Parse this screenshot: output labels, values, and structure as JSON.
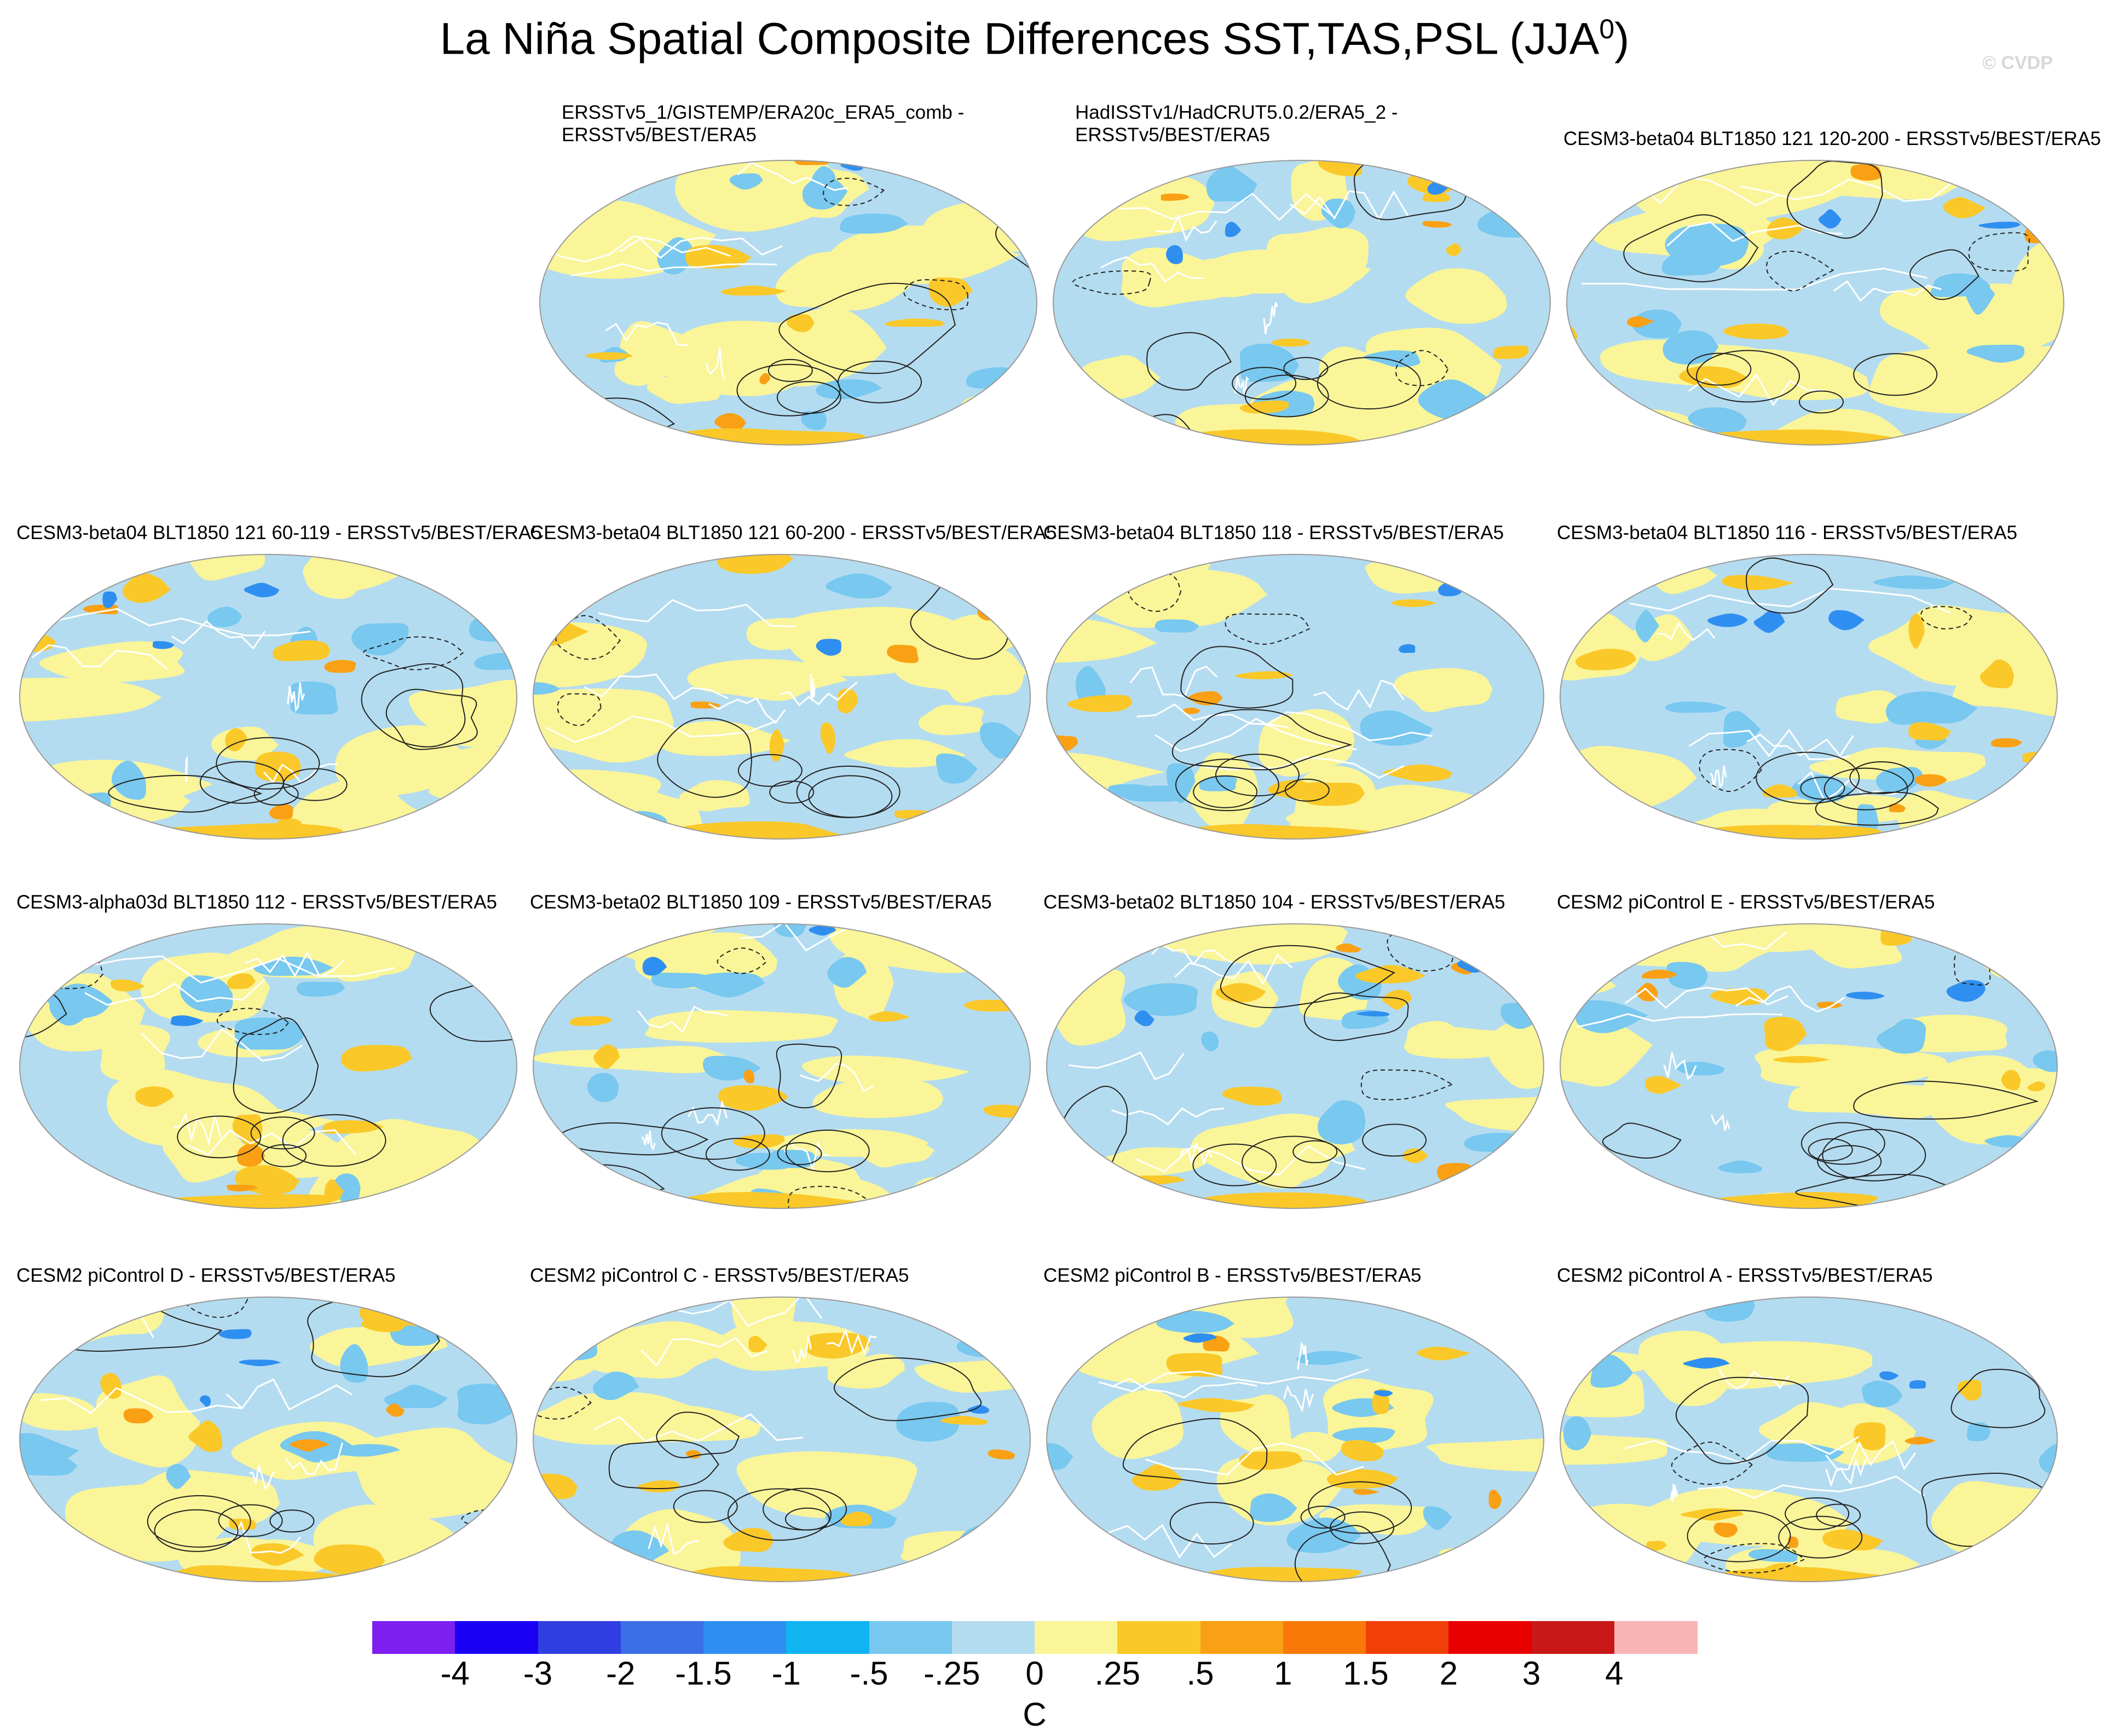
{
  "figure": {
    "title": "La Niña Spatial Composite Differences SST,TAS,PSL (JJA",
    "title_superscript": "0",
    "title_close": ")",
    "watermark": "© CVDP",
    "units": "C"
  },
  "panels": [
    {
      "title": "ERSSTv5_1/GISTEMP/ERA20c_ERA5_comb -\nERSSTv5/BEST/ERA5"
    },
    {
      "title": "HadISSTv1/HadCRUT5.0.2/ERA5_2 -\nERSSTv5/BEST/ERA5"
    },
    {
      "title": "CESM3-beta04 BLT1850 121 120-200 - ERSSTv5/BEST/ERA5"
    },
    {
      "title": "CESM3-beta04 BLT1850 121 60-119 - ERSSTv5/BEST/ERA5"
    },
    {
      "title": "CESM3-beta04 BLT1850 121 60-200 - ERSSTv5/BEST/ERA5"
    },
    {
      "title": "CESM3-beta04 BLT1850 118 - ERSSTv5/BEST/ERA5"
    },
    {
      "title": "CESM3-beta04 BLT1850 116 - ERSSTv5/BEST/ERA5"
    },
    {
      "title": "CESM3-alpha03d BLT1850 112 - ERSSTv5/BEST/ERA5"
    },
    {
      "title": "CESM3-beta02 BLT1850 109 - ERSSTv5/BEST/ERA5"
    },
    {
      "title": "CESM3-beta02 BLT1850 104 - ERSSTv5/BEST/ERA5"
    },
    {
      "title": "CESM2 piControl E - ERSSTv5/BEST/ERA5"
    },
    {
      "title": "CESM2 piControl D - ERSSTv5/BEST/ERA5"
    },
    {
      "title": "CESM2 piControl C - ERSSTv5/BEST/ERA5"
    },
    {
      "title": "CESM2 piControl B - ERSSTv5/BEST/ERA5"
    },
    {
      "title": "CESM2 piControl A - ERSSTv5/BEST/ERA5"
    }
  ],
  "colorbar": {
    "colors": [
      "#7d1ff0",
      "#1a00f5",
      "#2f3ee0",
      "#3b6fe8",
      "#2f8ff0",
      "#10b4f0",
      "#78c8f0",
      "#b4dcf0",
      "#faf598",
      "#fac828",
      "#faa014",
      "#f87808",
      "#f04008",
      "#e80000",
      "#c81818",
      "#f8b4b4"
    ],
    "labels": [
      "-4",
      "-3",
      "-2",
      "-1.5",
      "-1",
      "-.5",
      "-.25",
      "0",
      ".25",
      ".5",
      "1",
      "1.5",
      "2",
      "3",
      "4"
    ]
  }
}
